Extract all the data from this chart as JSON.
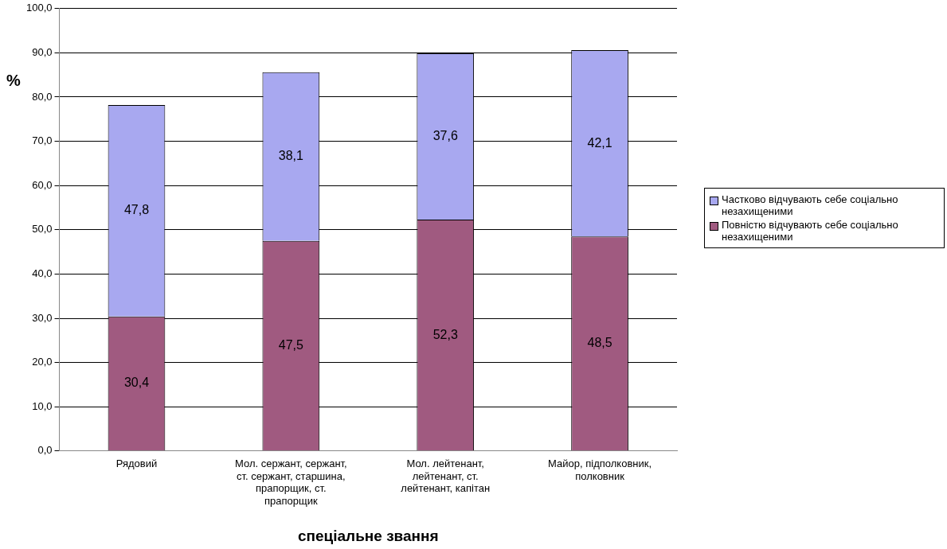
{
  "chart_data": {
    "type": "bar",
    "stacked": true,
    "xlabel": "спеціальне звання",
    "ylabel": "%",
    "categories": [
      "Рядовий",
      "Мол. сержант, сержант, ст. сержант, старшина, прапорщик, ст. прапорщик",
      "Мол. лейтенант, лейтенант, ст. лейтенант, капітан",
      "Майор, підполковник, полковник"
    ],
    "series": [
      {
        "name": "Повністю відчувають себе соціально незахищеними",
        "color": "#a05a80",
        "values": [
          30.4,
          47.5,
          52.3,
          48.5
        ],
        "value_labels": [
          "30,4",
          "47,5",
          "52,3",
          "48,5"
        ]
      },
      {
        "name": "Частково відчувають себе соціально незахищеними",
        "color": "#a8a8f0",
        "values": [
          47.8,
          38.1,
          37.6,
          42.1
        ],
        "value_labels": [
          "47,8",
          "38,1",
          "37,6",
          "42,1"
        ]
      }
    ],
    "ylim": [
      0,
      100
    ],
    "yticks": [
      {
        "value": 0,
        "label": "0,0"
      },
      {
        "value": 10,
        "label": "10,0"
      },
      {
        "value": 20,
        "label": "20,0"
      },
      {
        "value": 30,
        "label": "30,0"
      },
      {
        "value": 40,
        "label": "40,0"
      },
      {
        "value": 50,
        "label": "50,0"
      },
      {
        "value": 60,
        "label": "60,0"
      },
      {
        "value": 70,
        "label": "70,0"
      },
      {
        "value": 80,
        "label": "80,0"
      },
      {
        "value": 90,
        "label": "90,0"
      },
      {
        "value": 100,
        "label": "100,0"
      }
    ],
    "grid": "y",
    "legend": "right"
  }
}
